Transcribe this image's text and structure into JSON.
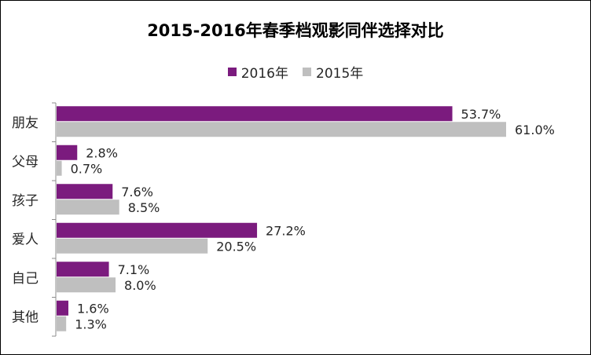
{
  "chart_data": {
    "type": "bar",
    "orientation": "horizontal",
    "title": "2015-2016年春季档观影同伴选择对比",
    "categories": [
      "朋友",
      "父母",
      "孩子",
      "爱人",
      "自己",
      "其他"
    ],
    "series": [
      {
        "name": "2016年",
        "values": [
          53.7,
          2.8,
          7.6,
          27.2,
          7.1,
          1.6
        ],
        "labels": [
          "53.7%",
          "2.8%",
          "7.6%",
          "27.2%",
          "7.1%",
          "1.6%"
        ],
        "color": "#7B1B7E"
      },
      {
        "name": "2015年",
        "values": [
          61.0,
          0.7,
          8.5,
          20.5,
          8.0,
          1.3
        ],
        "labels": [
          "61.0%",
          "0.7%",
          "8.5%",
          "20.5%",
          "8.0%",
          "1.3%"
        ],
        "color": "#BFBFBF"
      }
    ],
    "value_unit": "%",
    "xlim": [
      0,
      61
    ],
    "grid": false,
    "legend_position": "top"
  }
}
